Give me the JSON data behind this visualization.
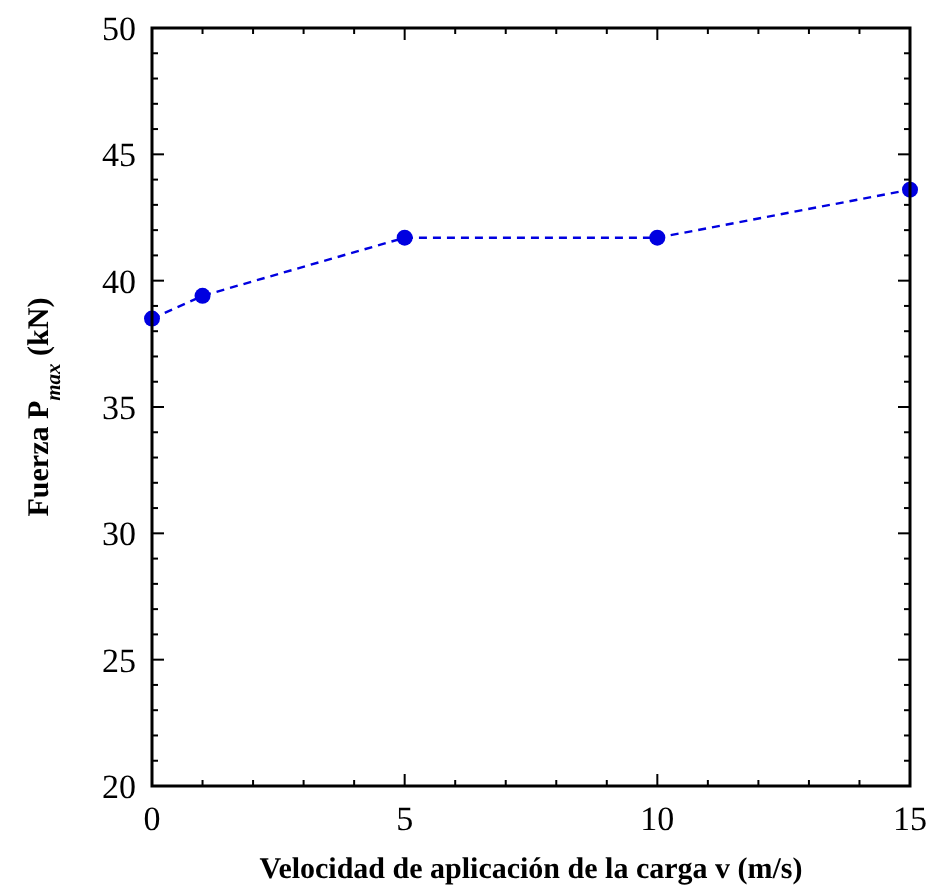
{
  "chart_data": {
    "type": "line",
    "xlabel": "Velocidad de aplicación de la carga v (m/s)",
    "ylabel": "Fuerza P$_{max}$ (kN)",
    "x": [
      0,
      1,
      5,
      10,
      15
    ],
    "series": [
      {
        "color": "#0000e0",
        "values": [
          38.5,
          39.4,
          41.7,
          41.7,
          43.6
        ]
      }
    ],
    "xlim": [
      0,
      15
    ],
    "xticks": [
      0,
      {
        "value": 1,
        "label": null
      },
      {
        "value": 2,
        "label": null
      },
      {
        "value": 3,
        "label": null
      },
      {
        "value": 4,
        "label": null
      },
      5,
      {
        "value": 6,
        "label": null
      },
      {
        "value": 7,
        "label": null
      },
      {
        "value": 8,
        "label": null
      },
      {
        "value": 9,
        "label": null
      },
      10,
      {
        "value": 11,
        "label": null
      },
      {
        "value": 12,
        "label": null
      },
      {
        "value": 13,
        "label": null
      },
      {
        "value": 14,
        "label": null
      },
      15
    ],
    "ylim": [
      20,
      50
    ],
    "yticks": [
      20,
      {
        "value": 21,
        "label": null
      },
      {
        "value": 22,
        "label": null
      },
      {
        "value": 23,
        "label": null
      },
      {
        "value": 24,
        "label": null
      },
      25,
      {
        "value": 26,
        "label": null
      },
      {
        "value": 27,
        "label": null
      },
      {
        "value": 28,
        "label": null
      },
      {
        "value": 29,
        "label": null
      },
      30,
      {
        "value": 31,
        "label": null
      },
      {
        "value": 32,
        "label": null
      },
      {
        "value": 33,
        "label": null
      },
      {
        "value": 34,
        "label": null
      },
      35,
      {
        "value": 36,
        "label": null
      },
      {
        "value": 37,
        "label": null
      },
      {
        "value": 38,
        "label": null
      },
      {
        "value": 39,
        "label": null
      },
      40,
      {
        "value": 41,
        "label": null
      },
      {
        "value": 42,
        "label": null
      },
      {
        "value": 43,
        "label": null
      },
      {
        "value": 44,
        "label": null
      },
      45,
      {
        "value": 46,
        "label": null
      },
      {
        "value": 47,
        "label": null
      },
      {
        "value": 48,
        "label": null
      },
      {
        "value": 49,
        "label": null
      },
      50
    ],
    "grid": false,
    "marker": "circle",
    "line_style": "dashed"
  }
}
